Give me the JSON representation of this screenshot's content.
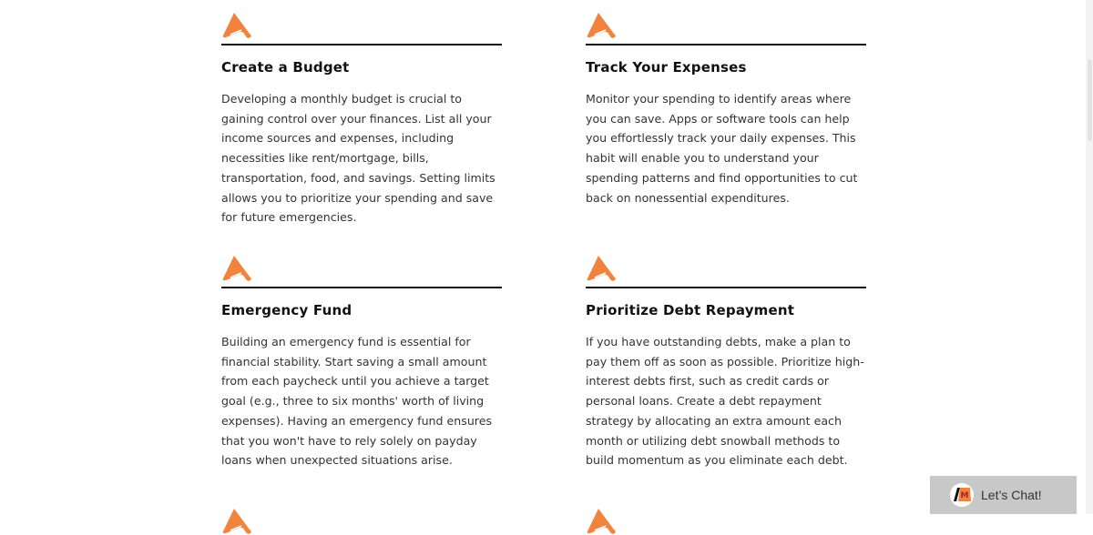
{
  "accent_color": "#f0843e",
  "cards": [
    {
      "icon": "arrow-peak-icon",
      "title": "Create a Budget",
      "body": "Developing a monthly budget is crucial to gaining control over your finances. List all your income sources and expenses, including necessities like rent/mortgage, bills, transportation, food, and savings. Setting limits allows you to prioritize your spending and save for future emergencies."
    },
    {
      "icon": "arrow-peak-icon",
      "title": "Track Your Expenses",
      "body": "Monitor your spending to identify areas where you can save. Apps or software tools can help you effortlessly track your daily expenses. This habit will enable you to understand your spending patterns and find opportunities to cut back on nonessential expenditures."
    },
    {
      "icon": "arrow-peak-icon",
      "title": "Emergency Fund",
      "body": "Building an emergency fund is essential for financial stability. Start saving a small amount from each paycheck until you achieve a target goal (e.g., three to six months' worth of living expenses). Having an emergency fund ensures that you won't have to rely solely on payday loans when unexpected situations arise."
    },
    {
      "icon": "arrow-peak-icon",
      "title": "Prioritize Debt Repayment",
      "body": "If you have outstanding debts, make a plan to pay them off as soon as possible. Prioritize high-interest debts first, such as credit cards or personal loans. Create a debt repayment strategy by allocating an extra amount each month or utilizing debt snowball methods to build momentum as you eliminate each debt."
    }
  ],
  "chat": {
    "label": "Let’s Chat!",
    "icon": "chat-logo-icon"
  }
}
